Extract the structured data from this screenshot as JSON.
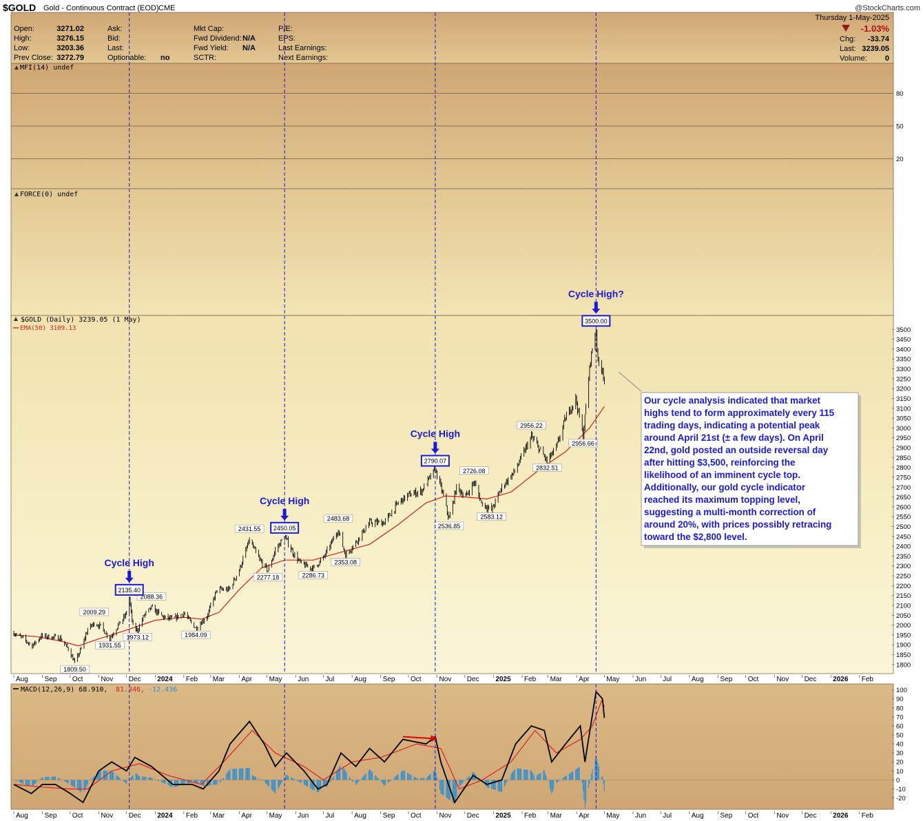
{
  "header": {
    "symbol": "$GOLD",
    "description": "Gold - Continuous Contract (EOD)",
    "exchange": "CME",
    "watermark": "@StockCharts.com",
    "date": "Thursday  1-May-2025",
    "pct_change": "-1.03%",
    "change_label": "Chg:",
    "change_value": "-33.74",
    "last_label": "Last:",
    "last_value": "3239.05",
    "volume_label": "Volume:",
    "volume_value": "0",
    "quote": [
      {
        "label": "Open:",
        "value": "3271.02"
      },
      {
        "label": "High:",
        "value": "3276.15"
      },
      {
        "label": "Low:",
        "value": "3203.36"
      },
      {
        "label": "Prev Close:",
        "value": "3272.79"
      }
    ],
    "quote2": [
      {
        "label": "Ask:",
        "value": ""
      },
      {
        "label": "Bid:",
        "value": ""
      },
      {
        "label": "Last:",
        "value": ""
      },
      {
        "label": "Optionable:",
        "value": "no"
      }
    ],
    "quote3": [
      {
        "label": "Mkt Cap:",
        "value": ""
      },
      {
        "label": "Fwd Dividend:",
        "value": "N/A"
      },
      {
        "label": "Fwd Yield:",
        "value": "N/A"
      },
      {
        "label": "SCTR:",
        "value": ""
      }
    ],
    "quote4": [
      {
        "label": "P/E:",
        "value": ""
      },
      {
        "label": "EPS:",
        "value": ""
      },
      {
        "label": "Last Earnings:",
        "value": ""
      },
      {
        "label": "Next Earnings:",
        "value": ""
      }
    ]
  },
  "panels": {
    "mfi_label": "MFI(14) undef",
    "mfi_ticks": [
      "80",
      "50",
      "20"
    ],
    "force_label": "FORCE(0) undef",
    "price_label": "$GOLD (Daily) 3239.05 (1 May)",
    "ema_label": "EMA(50) 3109.13",
    "macd_label": "MACD(12,26,9) 68.910,",
    "macd_signal_label": "81.346,",
    "macd_hist_label": "-12.436"
  },
  "colors": {
    "candle": "#000000",
    "ema": "#d42020",
    "macd": "#000000",
    "signal": "#e02020",
    "histogram": "#2a8fd4",
    "cycle_line": "#1a1ad6",
    "annotation": "#1a1ad6",
    "bg_light": "#f6efc8",
    "bg_dark": "#d0a874"
  },
  "months": [
    {
      "t": "Aug",
      "year": false
    },
    {
      "t": "Sep",
      "year": false
    },
    {
      "t": "Oct",
      "year": false
    },
    {
      "t": "Nov",
      "year": false
    },
    {
      "t": "Dec",
      "year": false
    },
    {
      "t": "2024",
      "year": true
    },
    {
      "t": "Feb",
      "year": false
    },
    {
      "t": "Mar",
      "year": false
    },
    {
      "t": "Apr",
      "year": false
    },
    {
      "t": "May",
      "year": false
    },
    {
      "t": "Jun",
      "year": false
    },
    {
      "t": "Jul",
      "year": false
    },
    {
      "t": "Aug",
      "year": false
    },
    {
      "t": "Sep",
      "year": false
    },
    {
      "t": "Oct",
      "year": false
    },
    {
      "t": "Nov",
      "year": false
    },
    {
      "t": "Dec",
      "year": false
    },
    {
      "t": "2025",
      "year": true
    },
    {
      "t": "Feb",
      "year": false
    },
    {
      "t": "Mar",
      "year": false
    },
    {
      "t": "Apr",
      "year": false
    },
    {
      "t": "May",
      "year": false
    },
    {
      "t": "Jun",
      "year": false
    },
    {
      "t": "Jul",
      "year": false
    },
    {
      "t": "Aug",
      "year": false
    },
    {
      "t": "Sep",
      "year": false
    },
    {
      "t": "Oct",
      "year": false
    },
    {
      "t": "Nov",
      "year": false
    },
    {
      "t": "Dec",
      "year": false
    },
    {
      "t": "2026",
      "year": true
    },
    {
      "t": "Feb",
      "year": false
    }
  ],
  "annotation": {
    "cycle_high": "Cycle High",
    "cycle_high_q": "Cycle High?",
    "note": [
      "Our cycle analysis indicated that market",
      "highs tend to form approximately every 115",
      "trading days, indicating a potential peak",
      "around April 21st (± a few days). On April",
      "22nd, gold posted an outside reversal day",
      "after hitting $3,500, reinforcing the",
      "likelihood of an imminent cycle top.",
      "Additionally, our gold cycle indicator",
      "reached its maximum topping level,",
      "suggesting a multi-month correction of",
      "around 20%, with prices possibly retracing",
      "toward the $2,800 level."
    ]
  },
  "chart_data": {
    "type": "line",
    "title": "$GOLD (Daily) 3239.05 (1 May)",
    "xlabel": "",
    "ylabel": "",
    "ylim": [
      1775,
      3550
    ],
    "yticks": [
      1800,
      1850,
      1900,
      1950,
      2000,
      2050,
      2100,
      2150,
      2200,
      2250,
      2300,
      2350,
      2400,
      2450,
      2500,
      2550,
      2600,
      2650,
      2700,
      2750,
      2800,
      2850,
      2900,
      2950,
      3000,
      3050,
      3100,
      3150,
      3200,
      3250,
      3300,
      3350,
      3400,
      3450,
      3500
    ],
    "xrange": [
      "2023-08-01",
      "2026-02-28"
    ],
    "grid": false,
    "legend": "top-left",
    "series": [
      {
        "name": "$GOLD (Daily)",
        "values_by_date": [
          [
            "2023-08-01",
            1960
          ],
          [
            "2023-08-10",
            1935
          ],
          [
            "2023-08-21",
            1895
          ],
          [
            "2023-08-31",
            1945
          ],
          [
            "2023-09-08",
            1940
          ],
          [
            "2023-09-20",
            1935
          ],
          [
            "2023-09-29",
            1880
          ],
          [
            "2023-10-05",
            1820
          ],
          [
            "2023-10-06",
            1809.5
          ],
          [
            "2023-10-13",
            1880
          ],
          [
            "2023-10-20",
            1980
          ],
          [
            "2023-10-27",
            2009.29
          ],
          [
            "2023-11-03",
            1995
          ],
          [
            "2023-11-10",
            1950
          ],
          [
            "2023-11-13",
            1931.55
          ],
          [
            "2023-11-22",
            2000
          ],
          [
            "2023-11-30",
            2050
          ],
          [
            "2023-12-04",
            2135.4
          ],
          [
            "2023-12-08",
            1990
          ],
          [
            "2023-12-13",
            1973.12
          ],
          [
            "2023-12-20",
            2050
          ],
          [
            "2023-12-28",
            2088.36
          ],
          [
            "2024-01-10",
            2040
          ],
          [
            "2024-01-20",
            2030
          ],
          [
            "2024-02-01",
            2060
          ],
          [
            "2024-02-14",
            1984.09
          ],
          [
            "2024-02-26",
            2045
          ],
          [
            "2024-03-08",
            2180
          ],
          [
            "2024-03-21",
            2180
          ],
          [
            "2024-04-01",
            2280
          ],
          [
            "2024-04-12",
            2431.55
          ],
          [
            "2024-04-23",
            2330
          ],
          [
            "2024-05-02",
            2277.18
          ],
          [
            "2024-05-10",
            2380
          ],
          [
            "2024-05-20",
            2450.05
          ],
          [
            "2024-05-30",
            2360
          ],
          [
            "2024-06-07",
            2310
          ],
          [
            "2024-06-20",
            2286.73
          ],
          [
            "2024-07-01",
            2340
          ],
          [
            "2024-07-17",
            2483.68
          ],
          [
            "2024-07-25",
            2353.08
          ],
          [
            "2024-08-05",
            2420
          ],
          [
            "2024-08-20",
            2520
          ],
          [
            "2024-09-05",
            2520
          ],
          [
            "2024-09-20",
            2620
          ],
          [
            "2024-10-01",
            2660
          ],
          [
            "2024-10-15",
            2680
          ],
          [
            "2024-10-30",
            2790.07
          ],
          [
            "2024-11-07",
            2670
          ],
          [
            "2024-11-14",
            2536.85
          ],
          [
            "2024-11-22",
            2700
          ],
          [
            "2024-12-02",
            2650
          ],
          [
            "2024-12-11",
            2726.08
          ],
          [
            "2024-12-19",
            2620
          ],
          [
            "2024-12-30",
            2583.12
          ],
          [
            "2025-01-10",
            2700
          ],
          [
            "2025-01-24",
            2780
          ],
          [
            "2025-02-11",
            2956.22
          ],
          [
            "2025-02-28",
            2832.51
          ],
          [
            "2025-03-10",
            2900
          ],
          [
            "2025-03-20",
            3050
          ],
          [
            "2025-03-31",
            3150
          ],
          [
            "2025-04-08",
            2956.66
          ],
          [
            "2025-04-16",
            3350
          ],
          [
            "2025-04-22",
            3500
          ],
          [
            "2025-04-24",
            3330
          ],
          [
            "2025-04-29",
            3300
          ],
          [
            "2025-05-01",
            3239.05
          ]
        ]
      },
      {
        "name": "EMA(50)",
        "values_by_date": [
          [
            "2023-08-01",
            1950
          ],
          [
            "2023-08-25",
            1942
          ],
          [
            "2023-09-20",
            1920
          ],
          [
            "2023-10-10",
            1895
          ],
          [
            "2023-11-01",
            1930
          ],
          [
            "2023-12-01",
            1975
          ],
          [
            "2024-01-01",
            2025
          ],
          [
            "2024-02-01",
            2040
          ],
          [
            "2024-02-20",
            2030
          ],
          [
            "2024-03-10",
            2065
          ],
          [
            "2024-04-01",
            2180
          ],
          [
            "2024-04-25",
            2290
          ],
          [
            "2024-05-20",
            2330
          ],
          [
            "2024-06-20",
            2330
          ],
          [
            "2024-07-20",
            2370
          ],
          [
            "2024-08-20",
            2410
          ],
          [
            "2024-09-20",
            2510
          ],
          [
            "2024-10-20",
            2620
          ],
          [
            "2024-11-10",
            2655
          ],
          [
            "2024-12-01",
            2650
          ],
          [
            "2024-12-25",
            2640
          ],
          [
            "2025-01-20",
            2675
          ],
          [
            "2025-02-20",
            2790
          ],
          [
            "2025-03-20",
            2880
          ],
          [
            "2025-04-15",
            3000
          ],
          [
            "2025-05-01",
            3109.13
          ]
        ]
      }
    ],
    "price_labels": [
      {
        "date": "2023-10-06",
        "value": 1809.5,
        "text": "1809.50",
        "pos": "below"
      },
      {
        "date": "2023-10-27",
        "value": 2009.29,
        "text": "2009.29",
        "pos": "above"
      },
      {
        "date": "2023-11-13",
        "value": 1931.55,
        "text": "1931.55",
        "pos": "below"
      },
      {
        "date": "2023-12-13",
        "value": 1973.12,
        "text": "1973.12",
        "pos": "below"
      },
      {
        "date": "2023-12-28",
        "value": 2088.36,
        "text": "2088.36",
        "pos": "above"
      },
      {
        "date": "2024-02-14",
        "value": 1984.09,
        "text": "1984.09",
        "pos": "below"
      },
      {
        "date": "2024-04-12",
        "value": 2431.55,
        "text": "2431.55",
        "pos": "above"
      },
      {
        "date": "2024-05-02",
        "value": 2277.18,
        "text": "2277.18",
        "pos": "below"
      },
      {
        "date": "2024-06-20",
        "value": 2286.73,
        "text": "2286.73",
        "pos": "below"
      },
      {
        "date": "2024-07-17",
        "value": 2483.68,
        "text": "2483.68",
        "pos": "above"
      },
      {
        "date": "2024-07-25",
        "value": 2353.08,
        "text": "2353.08",
        "pos": "below"
      },
      {
        "date": "2024-11-14",
        "value": 2536.85,
        "text": "2536.85",
        "pos": "below"
      },
      {
        "date": "2024-12-11",
        "value": 2726.08,
        "text": "2726.08",
        "pos": "above"
      },
      {
        "date": "2024-12-30",
        "value": 2583.12,
        "text": "2583.12",
        "pos": "below"
      },
      {
        "date": "2025-02-11",
        "value": 2956.22,
        "text": "2956.22",
        "pos": "above"
      },
      {
        "date": "2025-02-28",
        "value": 2832.51,
        "text": "2832.51",
        "pos": "below"
      },
      {
        "date": "2025-04-08",
        "value": 2956.66,
        "text": "2956.66",
        "pos": "below"
      }
    ],
    "cycle_highs": [
      {
        "date": "2023-12-04",
        "value": 2135.4,
        "text": "2135.40",
        "label": "Cycle High"
      },
      {
        "date": "2024-05-20",
        "value": 2450.05,
        "text": "2450.05",
        "label": "Cycle High"
      },
      {
        "date": "2024-10-30",
        "value": 2790.07,
        "text": "2790.07",
        "label": "Cycle High"
      },
      {
        "date": "2025-04-22",
        "value": 3500.0,
        "text": "3500.00",
        "label": "Cycle High?"
      }
    ],
    "macd": {
      "ylim": [
        -28,
        102
      ],
      "yticks": [
        100,
        90,
        80,
        70,
        60,
        50,
        40,
        30,
        20,
        10,
        0,
        -10,
        -20
      ],
      "macd": [
        [
          "2023-08-01",
          -5
        ],
        [
          "2023-08-20",
          -15
        ],
        [
          "2023-09-01",
          -5
        ],
        [
          "2023-09-15",
          -5
        ],
        [
          "2023-10-01",
          -15
        ],
        [
          "2023-10-15",
          -25
        ],
        [
          "2023-11-01",
          10
        ],
        [
          "2023-11-15",
          20
        ],
        [
          "2023-12-01",
          10
        ],
        [
          "2023-12-10",
          25
        ],
        [
          "2023-12-28",
          15
        ],
        [
          "2024-01-20",
          -5
        ],
        [
          "2024-02-10",
          -5
        ],
        [
          "2024-02-22",
          -10
        ],
        [
          "2024-03-10",
          10
        ],
        [
          "2024-03-22",
          40
        ],
        [
          "2024-04-12",
          65
        ],
        [
          "2024-04-28",
          40
        ],
        [
          "2024-05-10",
          15
        ],
        [
          "2024-05-22",
          30
        ],
        [
          "2024-06-10",
          10
        ],
        [
          "2024-06-25",
          -10
        ],
        [
          "2024-07-05",
          -5
        ],
        [
          "2024-07-20",
          30
        ],
        [
          "2024-08-05",
          15
        ],
        [
          "2024-08-20",
          35
        ],
        [
          "2024-09-05",
          20
        ],
        [
          "2024-09-25",
          45
        ],
        [
          "2024-10-20",
          40
        ],
        [
          "2024-10-30",
          48
        ],
        [
          "2024-11-05",
          20
        ],
        [
          "2024-11-20",
          -25
        ],
        [
          "2024-12-10",
          5
        ],
        [
          "2024-12-25",
          -5
        ],
        [
          "2025-01-10",
          0
        ],
        [
          "2025-01-25",
          40
        ],
        [
          "2025-02-11",
          60
        ],
        [
          "2025-02-25",
          55
        ],
        [
          "2025-03-05",
          20
        ],
        [
          "2025-03-20",
          40
        ],
        [
          "2025-04-05",
          60
        ],
        [
          "2025-04-10",
          20
        ],
        [
          "2025-04-22",
          98
        ],
        [
          "2025-04-29",
          90
        ],
        [
          "2025-05-01",
          68.91
        ]
      ],
      "signal": [
        [
          "2023-08-01",
          -5
        ],
        [
          "2023-09-01",
          -8
        ],
        [
          "2023-10-01",
          -10
        ],
        [
          "2023-10-20",
          -10
        ],
        [
          "2023-11-15",
          10
        ],
        [
          "2023-12-15",
          18
        ],
        [
          "2024-01-15",
          5
        ],
        [
          "2024-02-20",
          -5
        ],
        [
          "2024-03-15",
          20
        ],
        [
          "2024-04-15",
          55
        ],
        [
          "2024-05-10",
          30
        ],
        [
          "2024-06-10",
          15
        ],
        [
          "2024-07-01",
          0
        ],
        [
          "2024-08-01",
          20
        ],
        [
          "2024-09-01",
          25
        ],
        [
          "2024-10-10",
          40
        ],
        [
          "2024-11-05",
          35
        ],
        [
          "2024-11-25",
          -10
        ],
        [
          "2024-12-20",
          0
        ],
        [
          "2025-01-20",
          20
        ],
        [
          "2025-02-15",
          55
        ],
        [
          "2025-03-10",
          30
        ],
        [
          "2025-04-05",
          45
        ],
        [
          "2025-04-18",
          60
        ],
        [
          "2025-04-28",
          88
        ],
        [
          "2025-05-01",
          81.346
        ]
      ],
      "histogram_last": -12.436,
      "divergence_arrow": [
        [
          "2024-09-25",
          48
        ],
        [
          "2024-11-01",
          46
        ]
      ]
    },
    "mfi_ylim": [
      0,
      100
    ],
    "mfi_lines": [
      80,
      50,
      20
    ]
  }
}
